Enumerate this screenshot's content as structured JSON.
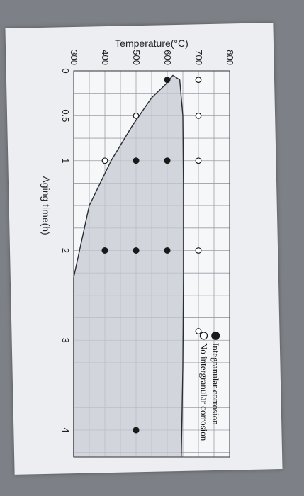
{
  "chart_data": {
    "type": "scatter",
    "xlabel": "Aging time(h)",
    "ylabel": "Temperature(°C)",
    "xlim": [
      0,
      4.3
    ],
    "ylim": [
      300,
      800
    ],
    "x_ticks": [
      {
        "v": 0,
        "label": "0"
      },
      {
        "v": 0.5,
        "label": "0.5"
      },
      {
        "v": 1,
        "label": "1"
      },
      {
        "v": 2,
        "label": "2"
      },
      {
        "v": 3,
        "label": "3"
      },
      {
        "v": 4,
        "label": "4"
      }
    ],
    "y_ticks": [
      {
        "v": 300,
        "label": "300"
      },
      {
        "v": 400,
        "label": "400"
      },
      {
        "v": 500,
        "label": "500"
      },
      {
        "v": 600,
        "label": "600"
      },
      {
        "v": 700,
        "label": "700"
      },
      {
        "v": 800,
        "label": "800"
      }
    ],
    "grid": true,
    "legend_position": "top-right",
    "series": [
      {
        "name": "Integranular corrosion",
        "marker": "filled-circle",
        "color": "#1a1a1a",
        "points": [
          [
            0.1,
            600
          ],
          [
            1,
            500
          ],
          [
            1,
            600
          ],
          [
            2,
            400
          ],
          [
            2,
            500
          ],
          [
            2,
            600
          ],
          [
            4,
            500
          ]
        ]
      },
      {
        "name": "No intergranular corrosion",
        "marker": "open-circle",
        "color": "#1a1a1a",
        "points": [
          [
            0.1,
            700
          ],
          [
            0.5,
            500
          ],
          [
            0.5,
            700
          ],
          [
            1,
            400
          ],
          [
            1,
            700
          ],
          [
            2,
            700
          ],
          [
            2.9,
            700
          ]
        ]
      }
    ],
    "boundary_curve": {
      "fill": "#c7cad3",
      "points": [
        [
          4.3,
          300
        ],
        [
          2.3,
          300
        ],
        [
          1.5,
          350
        ],
        [
          1.0,
          420
        ],
        [
          0.6,
          490
        ],
        [
          0.3,
          550
        ],
        [
          0.15,
          595
        ],
        [
          0.05,
          618
        ],
        [
          0.1,
          640
        ],
        [
          0.5,
          650
        ],
        [
          1.3,
          652
        ],
        [
          2.3,
          652
        ],
        [
          3.3,
          650
        ],
        [
          4.3,
          645
        ]
      ]
    }
  }
}
